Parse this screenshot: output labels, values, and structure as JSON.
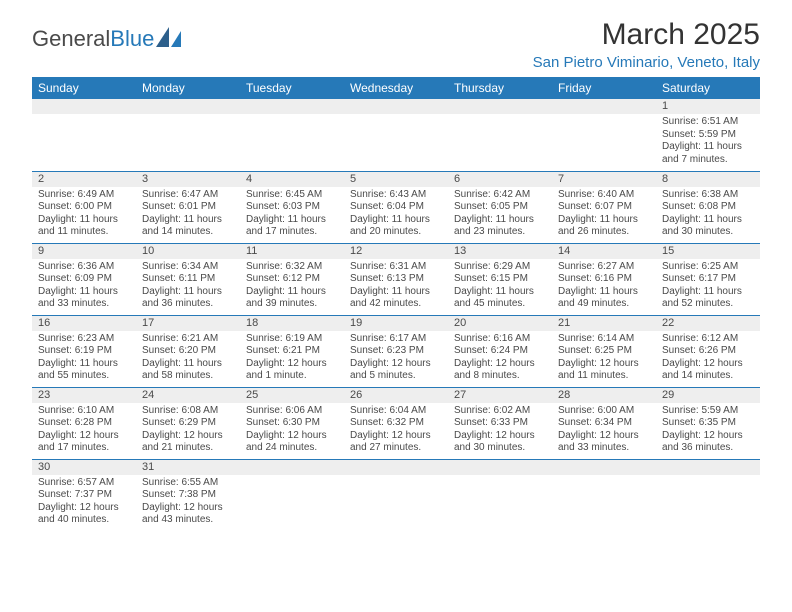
{
  "brand": {
    "general": "General",
    "blue": "Blue"
  },
  "title": "March 2025",
  "location": "San Pietro Viminario, Veneto, Italy",
  "colors": {
    "accent": "#2679b8",
    "header_text": "#ffffff",
    "daybar_bg": "#eeeeee",
    "body_text": "#4a4a4a",
    "page_bg": "#ffffff"
  },
  "typography": {
    "title_fontsize": 30,
    "location_fontsize": 15,
    "weekday_fontsize": 12,
    "cell_fontsize": 10
  },
  "weekdays": [
    "Sunday",
    "Monday",
    "Tuesday",
    "Wednesday",
    "Thursday",
    "Friday",
    "Saturday"
  ],
  "weeks": [
    [
      null,
      null,
      null,
      null,
      null,
      null,
      {
        "n": "1",
        "sunrise": "Sunrise: 6:51 AM",
        "sunset": "Sunset: 5:59 PM",
        "daylight": "Daylight: 11 hours and 7 minutes."
      }
    ],
    [
      {
        "n": "2",
        "sunrise": "Sunrise: 6:49 AM",
        "sunset": "Sunset: 6:00 PM",
        "daylight": "Daylight: 11 hours and 11 minutes."
      },
      {
        "n": "3",
        "sunrise": "Sunrise: 6:47 AM",
        "sunset": "Sunset: 6:01 PM",
        "daylight": "Daylight: 11 hours and 14 minutes."
      },
      {
        "n": "4",
        "sunrise": "Sunrise: 6:45 AM",
        "sunset": "Sunset: 6:03 PM",
        "daylight": "Daylight: 11 hours and 17 minutes."
      },
      {
        "n": "5",
        "sunrise": "Sunrise: 6:43 AM",
        "sunset": "Sunset: 6:04 PM",
        "daylight": "Daylight: 11 hours and 20 minutes."
      },
      {
        "n": "6",
        "sunrise": "Sunrise: 6:42 AM",
        "sunset": "Sunset: 6:05 PM",
        "daylight": "Daylight: 11 hours and 23 minutes."
      },
      {
        "n": "7",
        "sunrise": "Sunrise: 6:40 AM",
        "sunset": "Sunset: 6:07 PM",
        "daylight": "Daylight: 11 hours and 26 minutes."
      },
      {
        "n": "8",
        "sunrise": "Sunrise: 6:38 AM",
        "sunset": "Sunset: 6:08 PM",
        "daylight": "Daylight: 11 hours and 30 minutes."
      }
    ],
    [
      {
        "n": "9",
        "sunrise": "Sunrise: 6:36 AM",
        "sunset": "Sunset: 6:09 PM",
        "daylight": "Daylight: 11 hours and 33 minutes."
      },
      {
        "n": "10",
        "sunrise": "Sunrise: 6:34 AM",
        "sunset": "Sunset: 6:11 PM",
        "daylight": "Daylight: 11 hours and 36 minutes."
      },
      {
        "n": "11",
        "sunrise": "Sunrise: 6:32 AM",
        "sunset": "Sunset: 6:12 PM",
        "daylight": "Daylight: 11 hours and 39 minutes."
      },
      {
        "n": "12",
        "sunrise": "Sunrise: 6:31 AM",
        "sunset": "Sunset: 6:13 PM",
        "daylight": "Daylight: 11 hours and 42 minutes."
      },
      {
        "n": "13",
        "sunrise": "Sunrise: 6:29 AM",
        "sunset": "Sunset: 6:15 PM",
        "daylight": "Daylight: 11 hours and 45 minutes."
      },
      {
        "n": "14",
        "sunrise": "Sunrise: 6:27 AM",
        "sunset": "Sunset: 6:16 PM",
        "daylight": "Daylight: 11 hours and 49 minutes."
      },
      {
        "n": "15",
        "sunrise": "Sunrise: 6:25 AM",
        "sunset": "Sunset: 6:17 PM",
        "daylight": "Daylight: 11 hours and 52 minutes."
      }
    ],
    [
      {
        "n": "16",
        "sunrise": "Sunrise: 6:23 AM",
        "sunset": "Sunset: 6:19 PM",
        "daylight": "Daylight: 11 hours and 55 minutes."
      },
      {
        "n": "17",
        "sunrise": "Sunrise: 6:21 AM",
        "sunset": "Sunset: 6:20 PM",
        "daylight": "Daylight: 11 hours and 58 minutes."
      },
      {
        "n": "18",
        "sunrise": "Sunrise: 6:19 AM",
        "sunset": "Sunset: 6:21 PM",
        "daylight": "Daylight: 12 hours and 1 minute."
      },
      {
        "n": "19",
        "sunrise": "Sunrise: 6:17 AM",
        "sunset": "Sunset: 6:23 PM",
        "daylight": "Daylight: 12 hours and 5 minutes."
      },
      {
        "n": "20",
        "sunrise": "Sunrise: 6:16 AM",
        "sunset": "Sunset: 6:24 PM",
        "daylight": "Daylight: 12 hours and 8 minutes."
      },
      {
        "n": "21",
        "sunrise": "Sunrise: 6:14 AM",
        "sunset": "Sunset: 6:25 PM",
        "daylight": "Daylight: 12 hours and 11 minutes."
      },
      {
        "n": "22",
        "sunrise": "Sunrise: 6:12 AM",
        "sunset": "Sunset: 6:26 PM",
        "daylight": "Daylight: 12 hours and 14 minutes."
      }
    ],
    [
      {
        "n": "23",
        "sunrise": "Sunrise: 6:10 AM",
        "sunset": "Sunset: 6:28 PM",
        "daylight": "Daylight: 12 hours and 17 minutes."
      },
      {
        "n": "24",
        "sunrise": "Sunrise: 6:08 AM",
        "sunset": "Sunset: 6:29 PM",
        "daylight": "Daylight: 12 hours and 21 minutes."
      },
      {
        "n": "25",
        "sunrise": "Sunrise: 6:06 AM",
        "sunset": "Sunset: 6:30 PM",
        "daylight": "Daylight: 12 hours and 24 minutes."
      },
      {
        "n": "26",
        "sunrise": "Sunrise: 6:04 AM",
        "sunset": "Sunset: 6:32 PM",
        "daylight": "Daylight: 12 hours and 27 minutes."
      },
      {
        "n": "27",
        "sunrise": "Sunrise: 6:02 AM",
        "sunset": "Sunset: 6:33 PM",
        "daylight": "Daylight: 12 hours and 30 minutes."
      },
      {
        "n": "28",
        "sunrise": "Sunrise: 6:00 AM",
        "sunset": "Sunset: 6:34 PM",
        "daylight": "Daylight: 12 hours and 33 minutes."
      },
      {
        "n": "29",
        "sunrise": "Sunrise: 5:59 AM",
        "sunset": "Sunset: 6:35 PM",
        "daylight": "Daylight: 12 hours and 36 minutes."
      }
    ],
    [
      {
        "n": "30",
        "sunrise": "Sunrise: 6:57 AM",
        "sunset": "Sunset: 7:37 PM",
        "daylight": "Daylight: 12 hours and 40 minutes."
      },
      {
        "n": "31",
        "sunrise": "Sunrise: 6:55 AM",
        "sunset": "Sunset: 7:38 PM",
        "daylight": "Daylight: 12 hours and 43 minutes."
      },
      null,
      null,
      null,
      null,
      null
    ]
  ]
}
